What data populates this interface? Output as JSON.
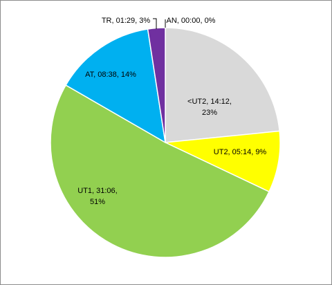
{
  "chart_data": {
    "type": "pie",
    "title": "",
    "slices": [
      {
        "category": "<UT2",
        "time": "14:12",
        "percent": "23%",
        "value": 852,
        "color": "#d9d9d9"
      },
      {
        "category": "UT2",
        "time": "05:14",
        "percent": "9%",
        "value": 314,
        "color": "#ffff00"
      },
      {
        "category": "UT1",
        "time": "31:06",
        "percent": "51%",
        "value": 1866,
        "color": "#92d050"
      },
      {
        "category": "AT",
        "time": "08:38",
        "percent": "14%",
        "value": 518,
        "color": "#00b0f0"
      },
      {
        "category": "TR",
        "time": "01:29",
        "percent": "3%",
        "value": 89,
        "color": "#7030a0"
      },
      {
        "category": "AN",
        "time": "00:00",
        "percent": "0%",
        "value": 0,
        "color": "#000000"
      }
    ],
    "labels": [
      {
        "lines": [
          "<UT2,  14:12,",
          "23%"
        ]
      },
      {
        "lines": [
          "UT2, 05:14, 9%"
        ]
      },
      {
        "lines": [
          "UT1, 31:06,",
          "51%"
        ]
      },
      {
        "lines": [
          "AT, 08:38, 14%"
        ]
      },
      {
        "lines": [
          "TR, 01:29, 3%"
        ]
      },
      {
        "lines": [
          "AN, 00:00, 0%"
        ]
      }
    ],
    "legend": "none",
    "start_angle": "12 o'clock",
    "direction": "clockwise"
  }
}
